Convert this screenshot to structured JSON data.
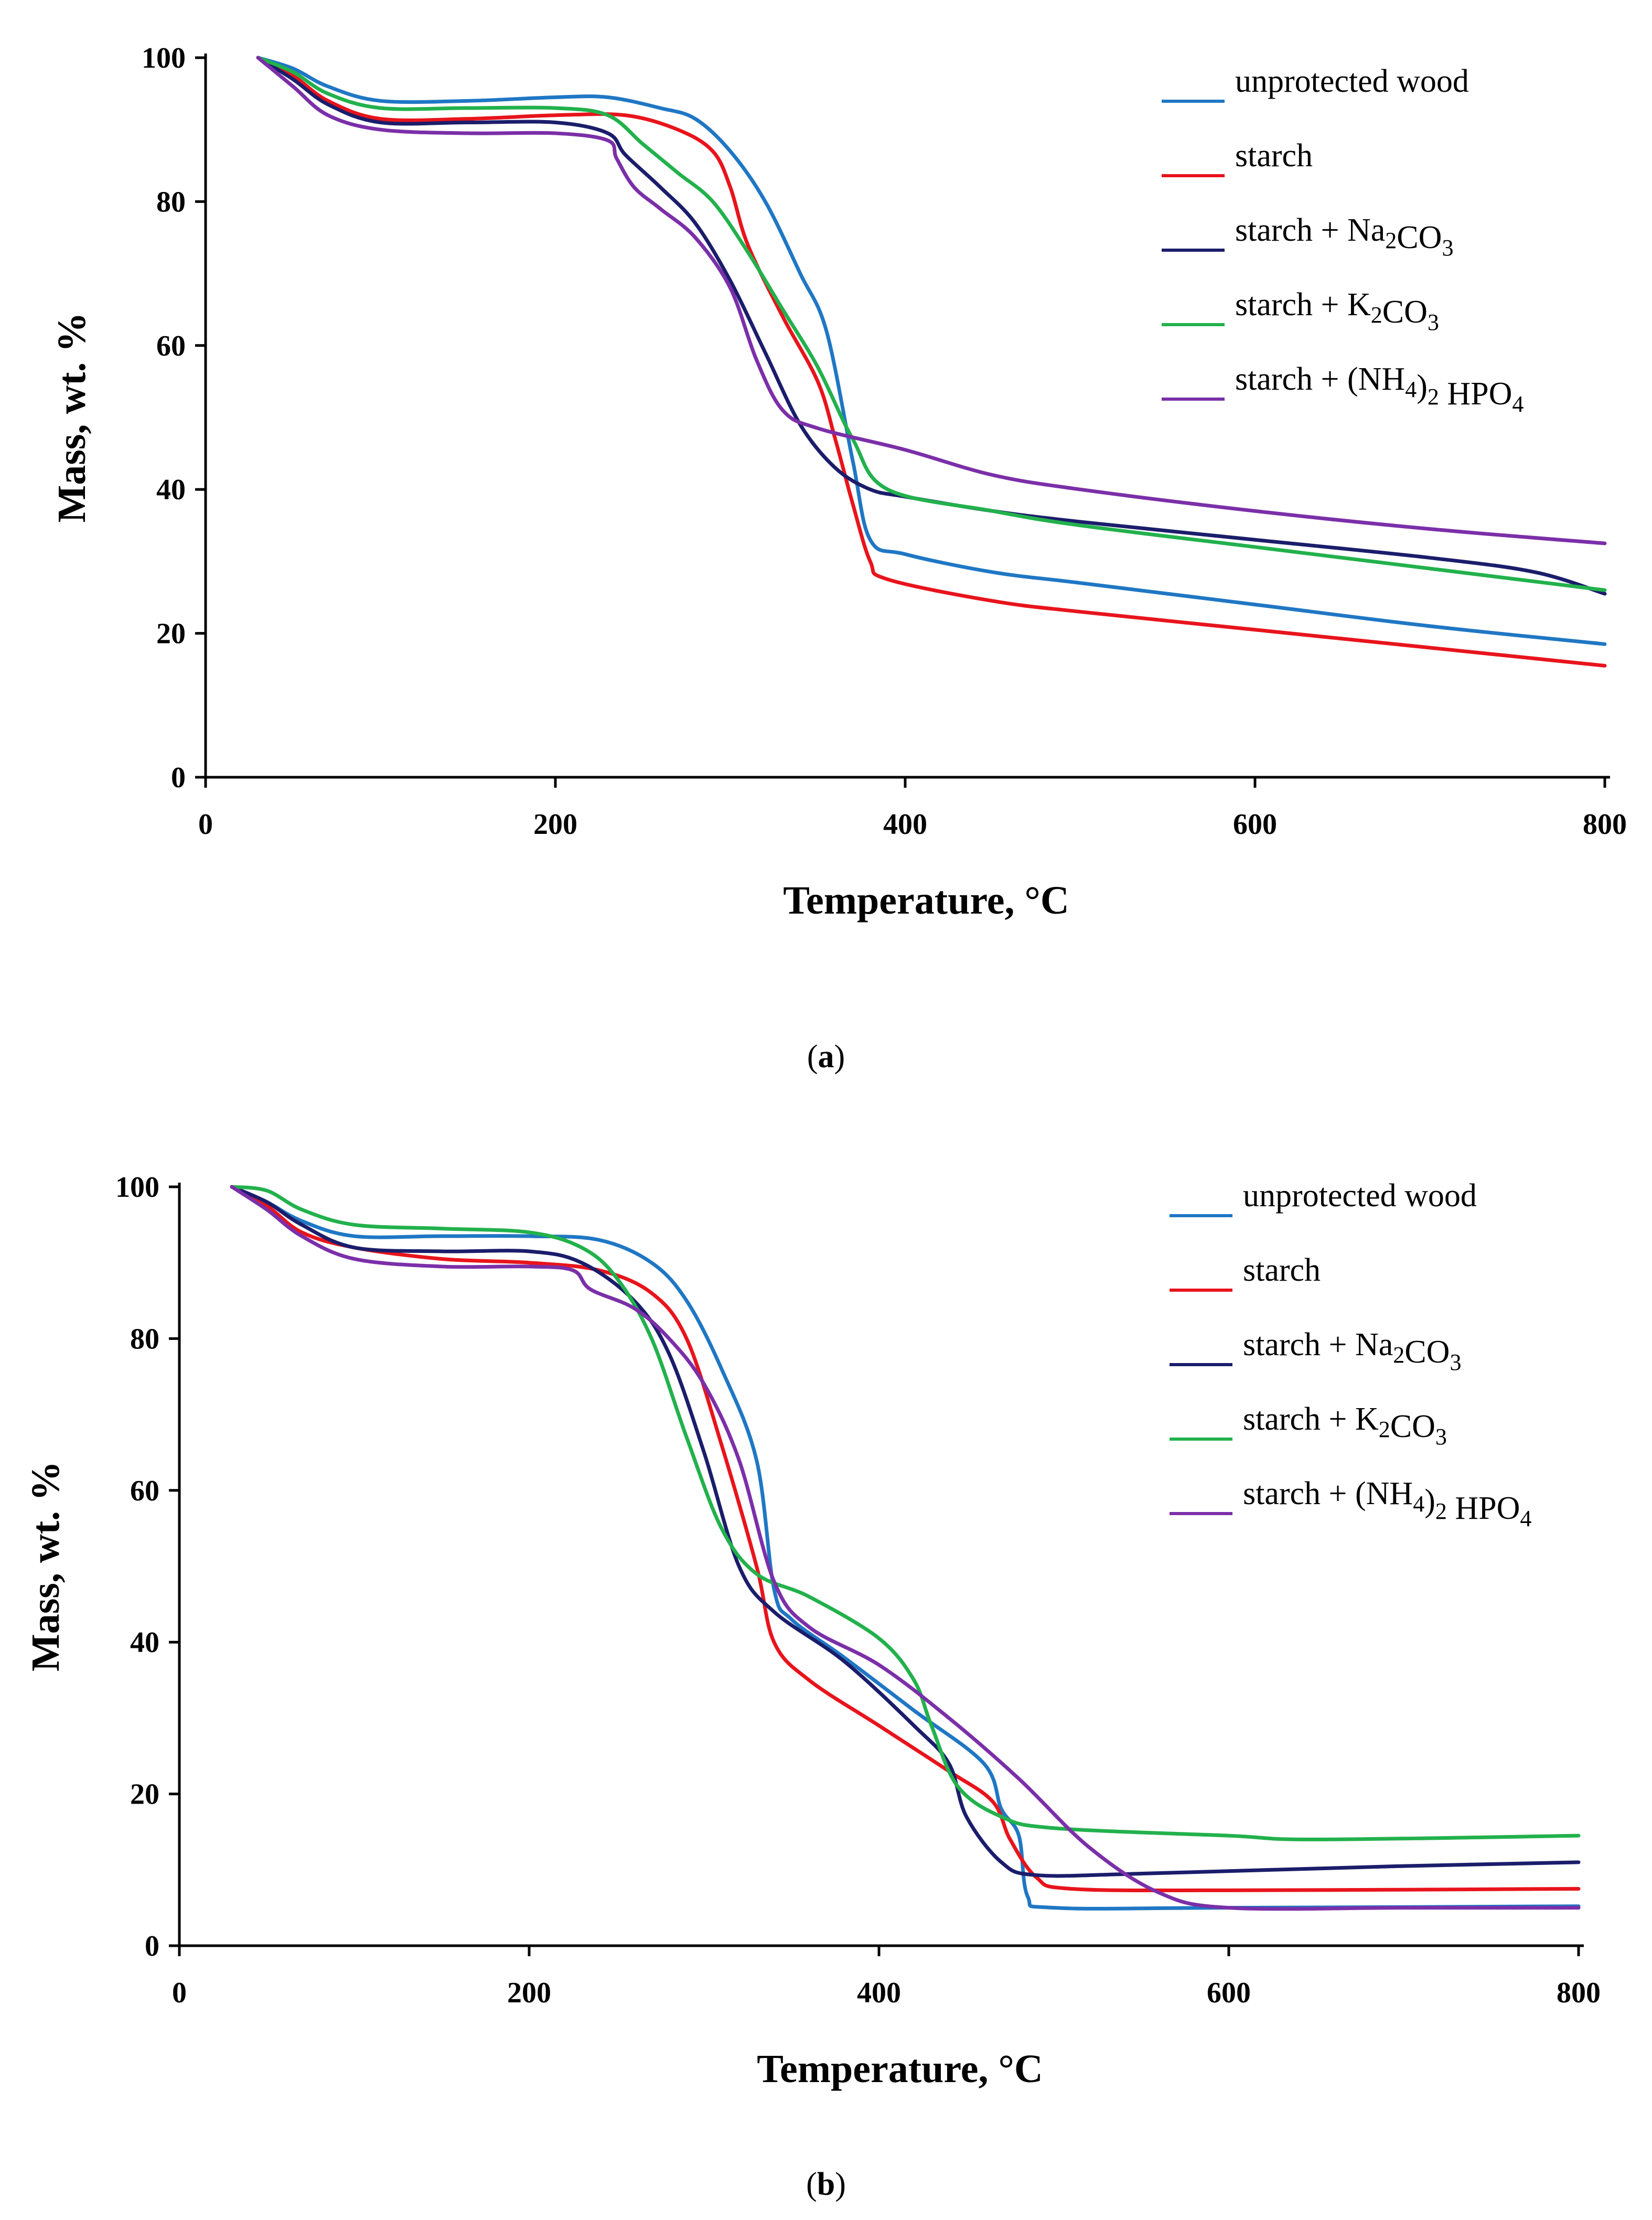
{
  "chart_data": [
    {
      "panel": "a",
      "caption_open": "(",
      "caption_letter": "a",
      "caption_close": ")",
      "type": "line",
      "xlabel": "Temperature, °C",
      "ylabel": "Mass, wt. %",
      "xlim": [
        0,
        800
      ],
      "ylim": [
        0,
        100
      ],
      "x_ticks": [
        "0",
        "200",
        "400",
        "600",
        "800"
      ],
      "y_ticks": [
        "0",
        "20",
        "40",
        "60",
        "80",
        "100"
      ],
      "legend_position": "top-right",
      "series": [
        {
          "name": "unprotected wood",
          "color": "#1f77c4",
          "points": [
            [
              30,
              100
            ],
            [
              50,
              98.5
            ],
            [
              70,
              96
            ],
            [
              100,
              94
            ],
            [
              150,
              94
            ],
            [
              200,
              94.5
            ],
            [
              230,
              94.5
            ],
            [
              260,
              93
            ],
            [
              280,
              91.5
            ],
            [
              300,
              87
            ],
            [
              320,
              80
            ],
            [
              340,
              70
            ],
            [
              355,
              62
            ],
            [
              370,
              44
            ],
            [
              380,
              33
            ],
            [
              400,
              31
            ],
            [
              450,
              28.5
            ],
            [
              500,
              27
            ],
            [
              600,
              24
            ],
            [
              700,
              21
            ],
            [
              800,
              18.5
            ]
          ]
        },
        {
          "name": "starch",
          "color": "#e8141c",
          "points": [
            [
              30,
              100
            ],
            [
              50,
              97.5
            ],
            [
              70,
              94
            ],
            [
              100,
              91.5
            ],
            [
              150,
              91.5
            ],
            [
              200,
              92
            ],
            [
              240,
              92
            ],
            [
              270,
              90
            ],
            [
              290,
              87
            ],
            [
              300,
              82
            ],
            [
              310,
              74
            ],
            [
              330,
              64
            ],
            [
              350,
              55
            ],
            [
              360,
              47
            ],
            [
              370,
              38
            ],
            [
              380,
              30
            ],
            [
              390,
              27.5
            ],
            [
              450,
              24.5
            ],
            [
              500,
              23
            ],
            [
              600,
              20.5
            ],
            [
              700,
              18
            ],
            [
              800,
              15.5
            ]
          ]
        },
        {
          "name": "starch + Na₂CO₃",
          "color": "#1b1d6b",
          "points": [
            [
              30,
              100
            ],
            [
              50,
              97
            ],
            [
              70,
              93.5
            ],
            [
              100,
              91
            ],
            [
              150,
              91
            ],
            [
              200,
              91
            ],
            [
              230,
              89.5
            ],
            [
              240,
              86.5
            ],
            [
              260,
              82
            ],
            [
              280,
              77
            ],
            [
              300,
              69
            ],
            [
              320,
              59
            ],
            [
              340,
              49
            ],
            [
              360,
              43
            ],
            [
              380,
              40
            ],
            [
              400,
              39
            ],
            [
              450,
              37
            ],
            [
              500,
              35.5
            ],
            [
              600,
              33
            ],
            [
              700,
              30.5
            ],
            [
              760,
              28.5
            ],
            [
              800,
              25.5
            ]
          ]
        },
        {
          "name": "starch + K₂CO₃",
          "color": "#22b14c",
          "points": [
            [
              30,
              100
            ],
            [
              50,
              98
            ],
            [
              70,
              95
            ],
            [
              100,
              93
            ],
            [
              150,
              93
            ],
            [
              200,
              93
            ],
            [
              230,
              92
            ],
            [
              250,
              88
            ],
            [
              270,
              84
            ],
            [
              290,
              80
            ],
            [
              310,
              73
            ],
            [
              330,
              65
            ],
            [
              350,
              57
            ],
            [
              370,
              47
            ],
            [
              390,
              40
            ],
            [
              450,
              37
            ],
            [
              500,
              35
            ],
            [
              600,
              32
            ],
            [
              700,
              29
            ],
            [
              800,
              26
            ]
          ]
        },
        {
          "name": "starch + (NH₄)₂ HPO₄",
          "color": "#7b2fa8",
          "points": [
            [
              30,
              100
            ],
            [
              50,
              96
            ],
            [
              70,
              92
            ],
            [
              100,
              90
            ],
            [
              150,
              89.5
            ],
            [
              200,
              89.5
            ],
            [
              230,
              88.5
            ],
            [
              235,
              86
            ],
            [
              245,
              82
            ],
            [
              260,
              79
            ],
            [
              280,
              75
            ],
            [
              300,
              68
            ],
            [
              315,
              58
            ],
            [
              330,
              51
            ],
            [
              350,
              48.5
            ],
            [
              400,
              45.5
            ],
            [
              450,
              42
            ],
            [
              500,
              40
            ],
            [
              600,
              37
            ],
            [
              700,
              34.5
            ],
            [
              800,
              32.5
            ]
          ]
        }
      ]
    },
    {
      "panel": "b",
      "caption_open": "(",
      "caption_letter": "b",
      "caption_close": ")",
      "type": "line",
      "xlabel": "Temperature, °C",
      "ylabel": "Mass, wt. %",
      "xlim": [
        0,
        800
      ],
      "ylim": [
        0,
        100
      ],
      "x_ticks": [
        "0",
        "200",
        "400",
        "600",
        "800"
      ],
      "y_ticks": [
        "0",
        "20",
        "40",
        "60",
        "80",
        "100"
      ],
      "legend_position": "top-right",
      "series": [
        {
          "name": "unprotected wood",
          "color": "#1f77c4",
          "points": [
            [
              30,
              100
            ],
            [
              50,
              98
            ],
            [
              70,
              95.5
            ],
            [
              100,
              93.5
            ],
            [
              150,
              93.5
            ],
            [
              200,
              93.5
            ],
            [
              240,
              93
            ],
            [
              270,
              90
            ],
            [
              290,
              85
            ],
            [
              310,
              76
            ],
            [
              330,
              64
            ],
            [
              340,
              47
            ],
            [
              350,
              43
            ],
            [
              380,
              38
            ],
            [
              420,
              31
            ],
            [
              460,
              24
            ],
            [
              470,
              18
            ],
            [
              480,
              14.5
            ],
            [
              485,
              6.5
            ],
            [
              500,
              5
            ],
            [
              600,
              5
            ],
            [
              800,
              5.2
            ]
          ]
        },
        {
          "name": "starch",
          "color": "#e8141c",
          "points": [
            [
              30,
              100
            ],
            [
              50,
              97.5
            ],
            [
              70,
              94
            ],
            [
              100,
              92
            ],
            [
              150,
              90.5
            ],
            [
              200,
              90
            ],
            [
              240,
              89
            ],
            [
              270,
              86
            ],
            [
              290,
              80
            ],
            [
              310,
              66
            ],
            [
              330,
              50
            ],
            [
              340,
              40
            ],
            [
              360,
              35
            ],
            [
              400,
              29
            ],
            [
              440,
              23
            ],
            [
              465,
              19
            ],
            [
              475,
              14
            ],
            [
              490,
              9
            ],
            [
              510,
              7.5
            ],
            [
              600,
              7.3
            ],
            [
              800,
              7.5
            ]
          ]
        },
        {
          "name": "starch + Na₂CO₃",
          "color": "#1b1d6b",
          "points": [
            [
              30,
              100
            ],
            [
              50,
              98
            ],
            [
              70,
              95
            ],
            [
              100,
              92
            ],
            [
              150,
              91.5
            ],
            [
              200,
              91.5
            ],
            [
              230,
              90
            ],
            [
              260,
              85
            ],
            [
              280,
              78
            ],
            [
              300,
              65
            ],
            [
              320,
              50
            ],
            [
              340,
              44
            ],
            [
              380,
              37.5
            ],
            [
              420,
              29
            ],
            [
              440,
              24
            ],
            [
              450,
              17
            ],
            [
              470,
              11
            ],
            [
              490,
              9.3
            ],
            [
              550,
              9.5
            ],
            [
              700,
              10.5
            ],
            [
              800,
              11
            ]
          ]
        },
        {
          "name": "starch + K₂CO₃",
          "color": "#22b14c",
          "points": [
            [
              30,
              100
            ],
            [
              50,
              99.5
            ],
            [
              70,
              97
            ],
            [
              100,
              95
            ],
            [
              150,
              94.5
            ],
            [
              200,
              94
            ],
            [
              230,
              92
            ],
            [
              250,
              88
            ],
            [
              270,
              80
            ],
            [
              290,
              67
            ],
            [
              310,
              55
            ],
            [
              330,
              49
            ],
            [
              360,
              46
            ],
            [
              400,
              40.5
            ],
            [
              420,
              35
            ],
            [
              430,
              29
            ],
            [
              445,
              21
            ],
            [
              470,
              17
            ],
            [
              500,
              15.5
            ],
            [
              600,
              14.5
            ],
            [
              650,
              14
            ],
            [
              800,
              14.5
            ]
          ]
        },
        {
          "name": "starch + (NH₄)₂ HPO₄",
          "color": "#7b2fa8",
          "points": [
            [
              30,
              100
            ],
            [
              50,
              97
            ],
            [
              70,
              93.5
            ],
            [
              100,
              90.5
            ],
            [
              150,
              89.5
            ],
            [
              200,
              89.5
            ],
            [
              225,
              89
            ],
            [
              235,
              86.5
            ],
            [
              260,
              84
            ],
            [
              280,
              80
            ],
            [
              300,
              74
            ],
            [
              320,
              64
            ],
            [
              340,
              48
            ],
            [
              360,
              42
            ],
            [
              400,
              37
            ],
            [
              440,
              30
            ],
            [
              480,
              22
            ],
            [
              520,
              13
            ],
            [
              560,
              7
            ],
            [
              600,
              5
            ],
            [
              700,
              5
            ],
            [
              800,
              5
            ]
          ]
        }
      ]
    }
  ]
}
